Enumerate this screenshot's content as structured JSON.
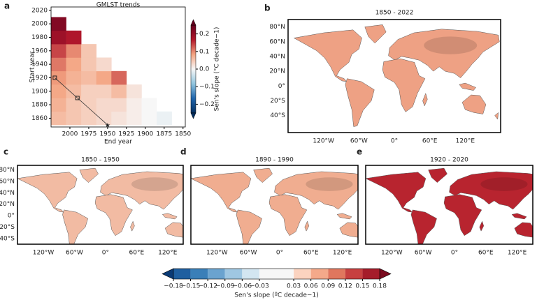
{
  "chart_data": [
    {
      "type": "heatmap",
      "label": "a",
      "title": "GMLST trends",
      "x_label": "End year",
      "y_label": "Start year",
      "x": [
        2015,
        1995,
        1975,
        1955,
        1935,
        1915,
        1895,
        1875
      ],
      "y": [
        1860,
        1880,
        1900,
        1920,
        1940,
        1960,
        1980,
        2000
      ],
      "z": [
        [
          0.06,
          0.05,
          0.04,
          0.03,
          0.02,
          0.01,
          0,
          -0.01
        ],
        [
          0.07,
          0.05,
          0.04,
          0.03,
          0.03,
          0.01,
          0,
          null
        ],
        [
          0.08,
          0.06,
          0.04,
          0.04,
          0.06,
          0.02,
          null,
          null
        ],
        [
          0.09,
          0.07,
          0.06,
          0.08,
          0.12,
          null,
          null,
          null
        ],
        [
          0.11,
          0.08,
          0.05,
          0.03,
          null,
          null,
          null,
          null
        ],
        [
          0.14,
          0.1,
          0.05,
          null,
          null,
          null,
          null,
          null
        ],
        [
          0.19,
          0.17,
          null,
          null,
          null,
          null,
          null,
          null
        ],
        [
          0.22,
          null,
          null,
          null,
          null,
          null,
          null,
          null
        ]
      ],
      "xlim": [
        2025,
        1847
      ],
      "xticks": [
        2000,
        1975,
        1950,
        1925,
        1900,
        1875,
        1850
      ],
      "ylim": [
        1847,
        2025
      ],
      "yticks": [
        1860,
        1880,
        1900,
        1920,
        1940,
        1960,
        1980,
        2000,
        2020
      ],
      "markers": {
        "x": [
          2020,
          1990,
          1950
        ],
        "y": [
          1920,
          1890,
          1850
        ]
      },
      "colorbar": {
        "label": "Sen's slope (°C decade−1)",
        "zlim": [
          -0.25,
          0.25
        ],
        "ticks": [
          {
            "value": -0.2,
            "label": "−0.2"
          },
          {
            "value": -0.1,
            "label": "−0.1"
          },
          {
            "value": 0,
            "label": "0.0"
          },
          0.1,
          0.2
        ],
        "colors": [
          "#053061",
          "#2166ac",
          "#92c5de",
          "#f7f7f7",
          "#f4a582",
          "#b2182b",
          "#67001f"
        ]
      }
    },
    {
      "type": "colorbar",
      "label": "Sen's slope (ºC decade−1)",
      "xlim": [
        -0.18,
        0.18
      ],
      "ticks": [
        {
          "value": -0.18,
          "label": "−0.18"
        },
        {
          "value": -0.15,
          "label": "−0.15"
        },
        {
          "value": -0.12,
          "label": "−0.12"
        },
        {
          "value": -0.09,
          "label": "−0.09"
        },
        {
          "value": -0.06,
          "label": "−0.06"
        },
        {
          "value": -0.03,
          "label": "−0.03"
        },
        0.03,
        0.06,
        0.09,
        0.12,
        0.15,
        0.18
      ],
      "colors": [
        "#0a3a75",
        "#1f5fa0",
        "#3a7fb8",
        "#6aa3cf",
        "#9fc7e2",
        "#d3e6f1",
        "#f7f7f7",
        "#fbd3c0",
        "#f4a98a",
        "#e0775e",
        "#c74040",
        "#a51c2a",
        "#7a0a1e"
      ]
    }
  ],
  "maps": [
    {
      "label": "b",
      "title": "1850 - 2022",
      "color": "#eea184",
      "lonlim": [
        -180,
        180
      ],
      "latlim": [
        -63,
        90
      ],
      "latticks": [
        {
          "value": 80,
          "label": "80°N"
        },
        {
          "value": 60,
          "label": "60°N"
        },
        {
          "value": 40,
          "label": "40°N"
        },
        {
          "value": 20,
          "label": "20°N"
        },
        {
          "value": 0,
          "label": "0°"
        },
        {
          "value": -20,
          "label": "20°S"
        },
        {
          "value": -40,
          "label": "40°S"
        }
      ],
      "lonticks": [
        {
          "value": -120,
          "label": "120°W"
        },
        {
          "value": -60,
          "label": "60°W"
        },
        {
          "value": 0,
          "label": "0°"
        },
        {
          "value": 60,
          "label": "60°E"
        },
        {
          "value": 120,
          "label": "120°E"
        }
      ]
    },
    {
      "label": "c",
      "title": "1850 - 1950",
      "color": "#f2bba3",
      "lonlim": [
        -170,
        150
      ],
      "latlim": [
        -50,
        88
      ],
      "latticks": [
        {
          "value": 80,
          "label": "80°N"
        },
        {
          "value": 60,
          "label": "60°N"
        },
        {
          "value": 40,
          "label": "40°N"
        },
        {
          "value": 20,
          "label": "20°N"
        },
        {
          "value": 0,
          "label": "0°"
        },
        {
          "value": -20,
          "label": "20°S"
        },
        {
          "value": -40,
          "label": "40°S"
        }
      ],
      "lonticks": [
        {
          "value": -120,
          "label": "120°W"
        },
        {
          "value": -60,
          "label": "60°W"
        },
        {
          "value": 0,
          "label": "0°"
        },
        {
          "value": 60,
          "label": "60°E"
        },
        {
          "value": 120,
          "label": "120°E"
        }
      ]
    },
    {
      "label": "d",
      "title": "1890 - 1990",
      "color": "#f0ad90",
      "lonlim": [
        -170,
        150
      ],
      "latlim": [
        -50,
        88
      ],
      "lonticks": [
        {
          "value": -120,
          "label": "120°W"
        },
        {
          "value": -60,
          "label": "60°W"
        },
        {
          "value": 0,
          "label": "0°"
        },
        {
          "value": 60,
          "label": "60°E"
        },
        {
          "value": 120,
          "label": "120°E"
        }
      ]
    },
    {
      "label": "e",
      "title": "1920 - 2020",
      "color": "#b8242f",
      "lonlim": [
        -170,
        150
      ],
      "latlim": [
        -50,
        88
      ],
      "lonticks": [
        {
          "value": -120,
          "label": "120°W"
        },
        {
          "value": -60,
          "label": "60°W"
        },
        {
          "value": 0,
          "label": "0°"
        },
        {
          "value": 60,
          "label": "60°E"
        },
        {
          "value": 120,
          "label": "120°E"
        }
      ]
    }
  ]
}
